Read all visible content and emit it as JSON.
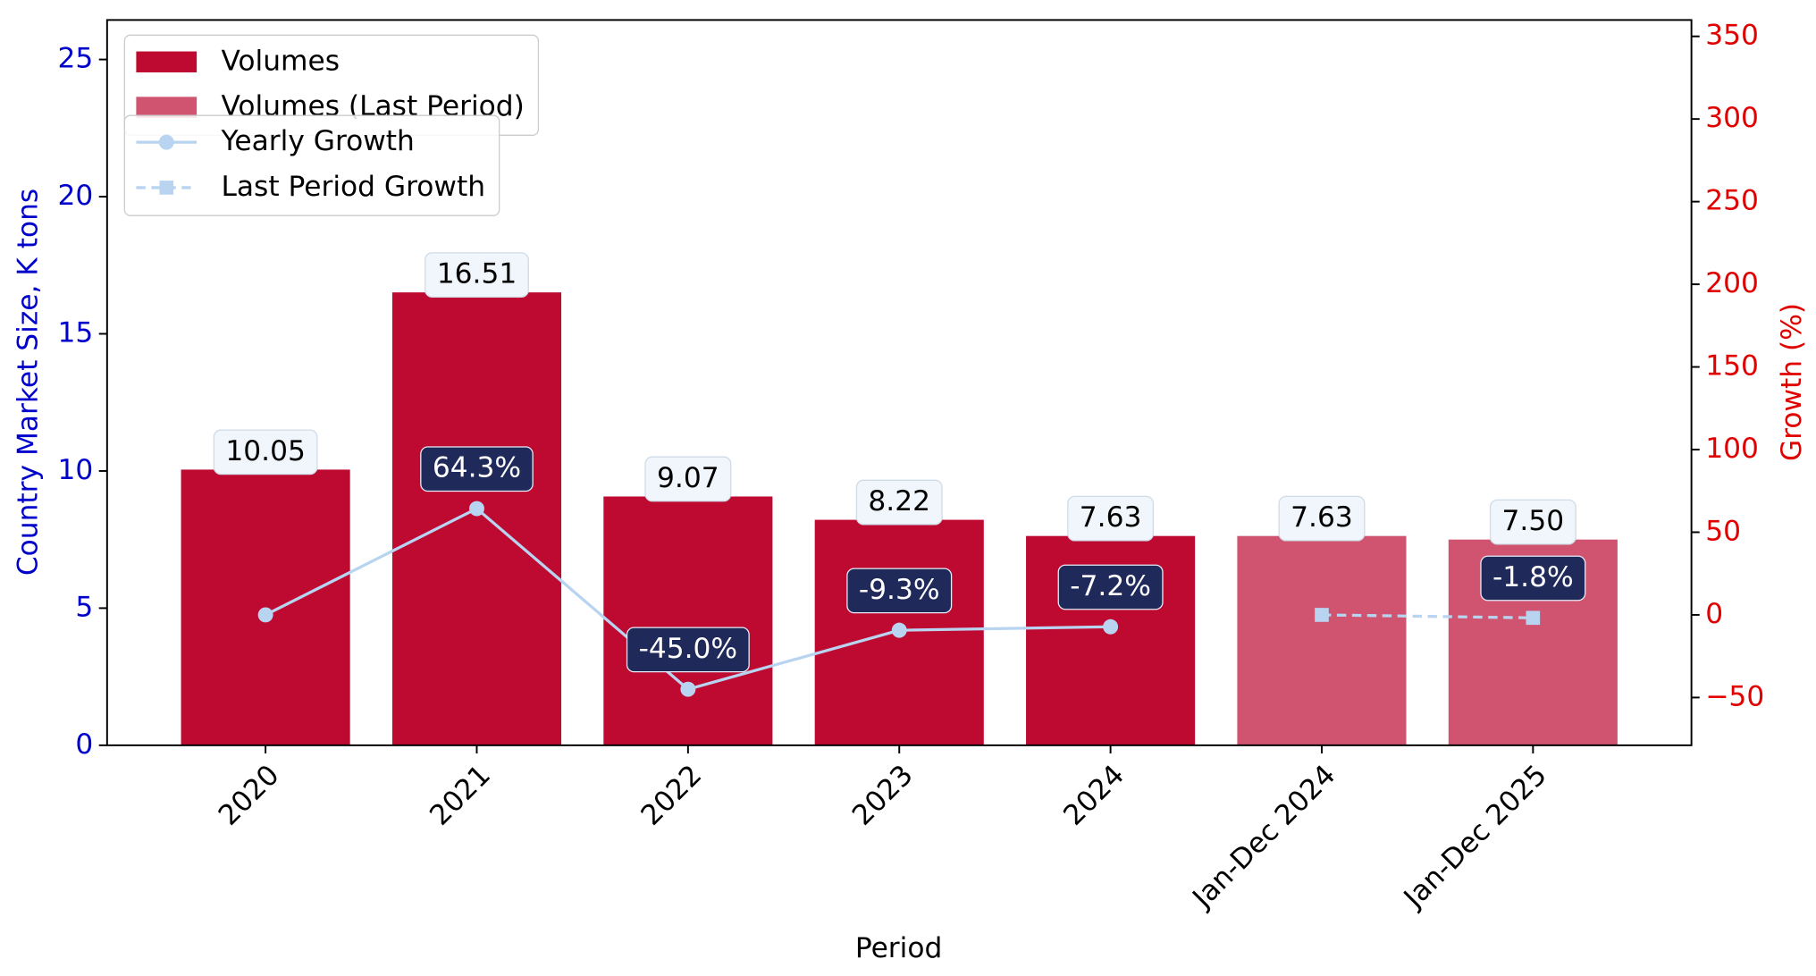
{
  "chart_data": {
    "type": "bar",
    "xlabel": "Period",
    "ylabel": "Country Market Size, K tons",
    "y2label": "Growth (%)",
    "categories": [
      "2020",
      "2021",
      "2022",
      "2023",
      "2024",
      "Jan-Dec 2024",
      "Jan-Dec 2025"
    ],
    "series": [
      {
        "name": "Volumes",
        "type": "bar",
        "color": "#be0a31",
        "values": [
          10.05,
          16.51,
          9.07,
          8.22,
          7.63,
          null,
          null
        ],
        "value_labels": [
          "10.05",
          "16.51",
          "9.07",
          "8.22",
          "7.63",
          null,
          null
        ]
      },
      {
        "name": "Volumes (Last Period)",
        "type": "bar",
        "color": "#d05470",
        "values": [
          null,
          null,
          null,
          null,
          null,
          7.63,
          7.5
        ],
        "value_labels": [
          null,
          null,
          null,
          null,
          null,
          "7.63",
          "7.50"
        ]
      },
      {
        "name": "Yearly Growth",
        "type": "line",
        "axis": "y2",
        "color": "#b8d4f0",
        "linestyle": "solid",
        "marker": "circle",
        "values": [
          0,
          64.3,
          -45.0,
          -9.3,
          -7.2,
          null,
          null
        ],
        "value_labels": [
          null,
          "64.3%",
          "-45.0%",
          "-9.3%",
          "-7.2%",
          null,
          null
        ]
      },
      {
        "name": "Last Period Growth",
        "type": "line",
        "axis": "y2",
        "color": "#b8d4f0",
        "linestyle": "dashed",
        "marker": "square",
        "values": [
          null,
          null,
          null,
          null,
          null,
          0,
          -1.8
        ],
        "value_labels": [
          null,
          null,
          null,
          null,
          null,
          null,
          "-1.8%"
        ]
      }
    ],
    "ylim": [
      0,
      26.44
    ],
    "yticks": [
      0,
      5,
      10,
      15,
      20,
      25
    ],
    "y2lim": [
      -78.9,
      359.9
    ],
    "y2ticks": [
      {
        "value": -50,
        "label": "−50"
      },
      0,
      50,
      100,
      150,
      200,
      250,
      300,
      350
    ],
    "ycolor": "#0000cc",
    "y2color": "#e00000",
    "legend": "upper left"
  }
}
